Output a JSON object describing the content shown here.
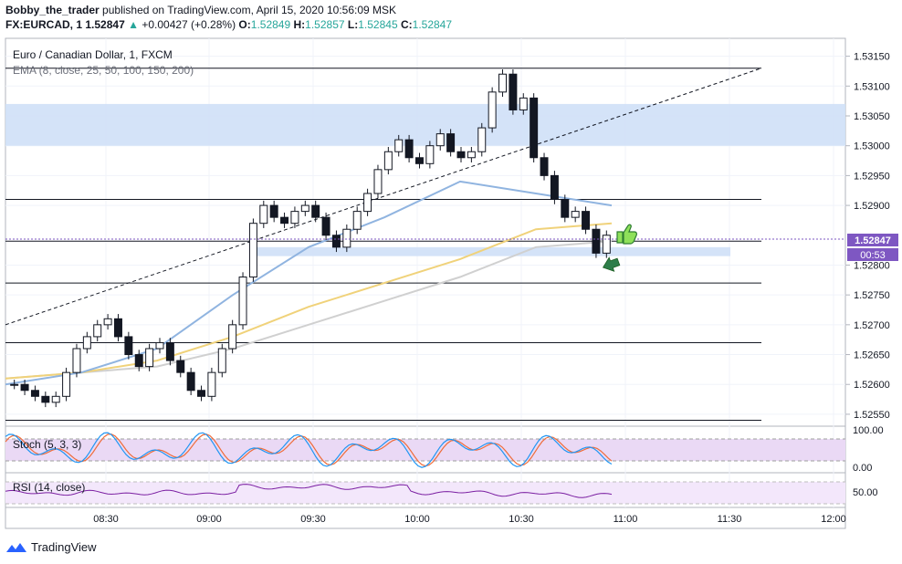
{
  "header": {
    "author": "Bobby_the_trader",
    "published": "published on TradingView.com, April 15, 2020 10:56:09 MSK",
    "symbol": "FX:EURCAD, 1",
    "last": "1.52847",
    "change": "+0.00427 (+0.28%)",
    "o_label": "O:",
    "o": "1.52849",
    "h_label": "H:",
    "h": "1.52857",
    "l_label": "L:",
    "l": "1.52845",
    "c_label": "C:",
    "c": "1.52847"
  },
  "legend": {
    "title": "Euro / Canadian Dollar, 1, FXCM",
    "ema": "EMA (8, close, 25, 50, 100, 150, 200)",
    "stoch": "Stoch (5, 3, 3)",
    "rsi": "RSI (14, close)"
  },
  "price_axis": {
    "ticks": [
      "1.53150",
      "1.53100",
      "1.53050",
      "1.53000",
      "1.52950",
      "1.52900",
      "1.52800",
      "1.52750",
      "1.52700",
      "1.52650",
      "1.52600",
      "1.52550"
    ],
    "tick_values": [
      1.5315,
      1.531,
      1.5305,
      1.53,
      1.5295,
      1.529,
      1.528,
      1.5275,
      1.527,
      1.5265,
      1.526,
      1.5255
    ],
    "current_price": "1.52847",
    "countdown": "00:53"
  },
  "stoch_axis": {
    "ticks": [
      "100.00",
      "0.00"
    ]
  },
  "rsi_axis": {
    "ticks": [
      "50.00"
    ]
  },
  "time_axis": {
    "ticks": [
      "08:30",
      "09:00",
      "09:30",
      "10:00",
      "10:30",
      "11:00",
      "11:30",
      "12:00"
    ]
  },
  "colors": {
    "up": "#26a69a",
    "candle": "#131722",
    "ema_blue": "#90b4e0",
    "ema_yellow": "#f0d27a",
    "ema_gray": "#d0d0d0",
    "zone": "#cfe0f7",
    "stoch_k": "#2196f3",
    "stoch_d": "#ef6c3a",
    "rsi": "#7b1fa2",
    "band": "#ead9f5",
    "price_label": "#7e57c2"
  },
  "footer": {
    "brand": "TradingView"
  },
  "chart_data": {
    "type": "candlestick",
    "symbol": "FX:EURCAD",
    "interval": "1",
    "ylim": [
      1.5253,
      1.5318
    ],
    "candles_close": [
      1.526,
      1.5259,
      1.5258,
      1.5257,
      1.5258,
      1.5262,
      1.5266,
      1.5268,
      1.527,
      1.5271,
      1.5268,
      1.5265,
      1.5263,
      1.5266,
      1.5267,
      1.5264,
      1.5262,
      1.5259,
      1.5258,
      1.5262,
      1.5266,
      1.527,
      1.5278,
      1.5287,
      1.529,
      1.5288,
      1.5287,
      1.5289,
      1.529,
      1.5288,
      1.5285,
      1.5283,
      1.5286,
      1.5289,
      1.5292,
      1.5296,
      1.5299,
      1.5301,
      1.5298,
      1.5297,
      1.53,
      1.5302,
      1.5299,
      1.5298,
      1.5299,
      1.5303,
      1.5309,
      1.5312,
      1.5306,
      1.5308,
      1.5298,
      1.5295,
      1.5291,
      1.5288,
      1.5289,
      1.5286,
      1.5282,
      1.5285
    ],
    "horizontal_levels": [
      1.5313,
      1.5291,
      1.5284,
      1.5277,
      1.5267,
      1.5254
    ],
    "zones": [
      [
        1.53,
        1.5307
      ],
      [
        1.52815,
        1.5283
      ]
    ],
    "trendline": [
      [
        0,
        1.527
      ],
      [
        1,
        1.5313
      ]
    ],
    "ema_fast": [
      1.526,
      1.5262,
      1.5266,
      1.5275,
      1.5283,
      1.5288,
      1.5294,
      1.5292,
      1.529
    ],
    "ema_mid": [
      1.5261,
      1.5262,
      1.5264,
      1.5268,
      1.5273,
      1.5277,
      1.5281,
      1.5286,
      1.5287
    ],
    "ema_slow": [
      1.5261,
      1.5262,
      1.5263,
      1.5266,
      1.527,
      1.5274,
      1.5278,
      1.5283,
      1.5284
    ]
  }
}
